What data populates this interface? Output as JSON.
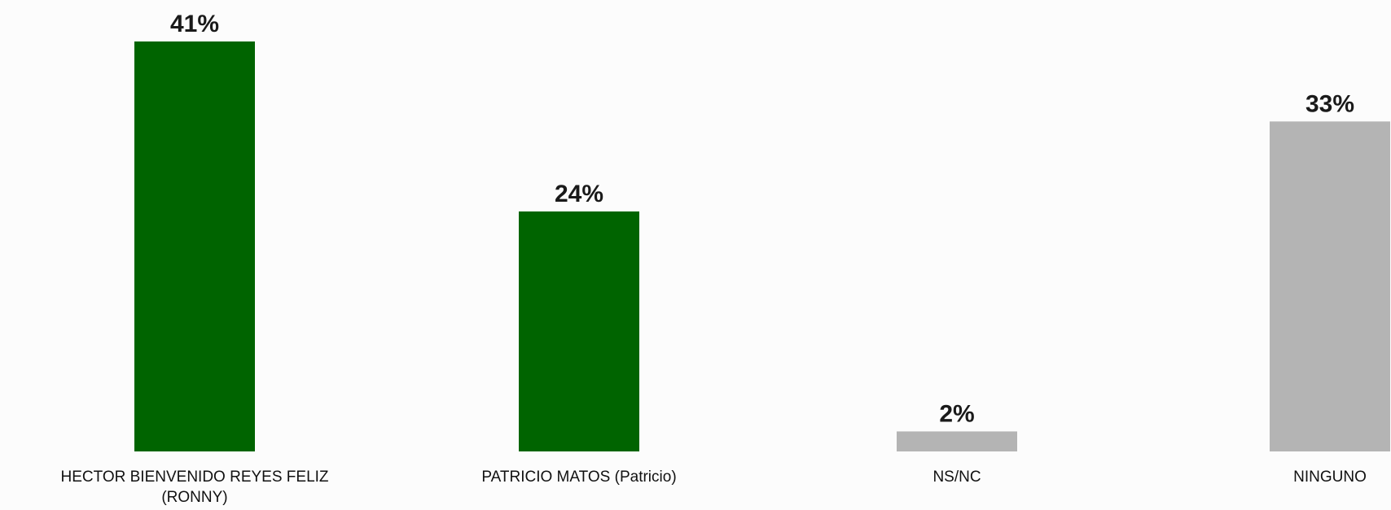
{
  "chart_data": {
    "type": "bar",
    "categories": [
      [
        "HECTOR BIENVENIDO REYES FELIZ",
        "(RONNY)"
      ],
      [
        "PATRICIO MATOS (Patricio)"
      ],
      [
        "NS/NC"
      ],
      [
        "NINGUNO"
      ]
    ],
    "values": [
      41,
      24,
      2,
      33
    ],
    "value_labels": [
      "41%",
      "24%",
      "2%",
      "33%"
    ],
    "colors": [
      "#006400",
      "#006400",
      "#b4b4b4",
      "#b4b4b4"
    ],
    "ylim": [
      0,
      41
    ],
    "grid": false,
    "legend": "none"
  }
}
